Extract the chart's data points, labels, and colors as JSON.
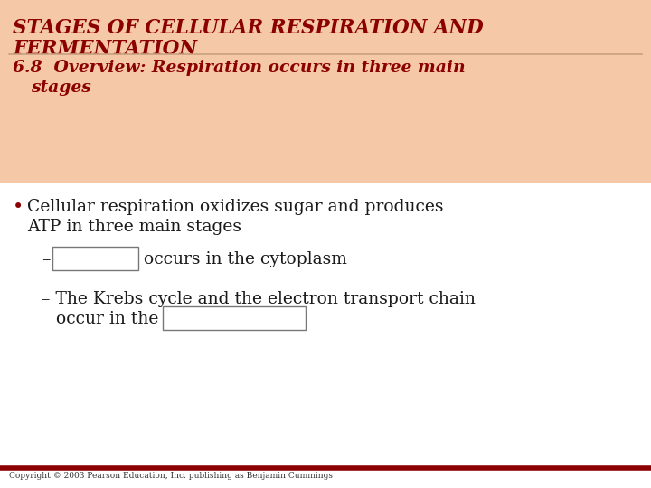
{
  "title_line1": "STAGES OF CELLULAR RESPIRATION AND",
  "title_line2": "FERMENTATION",
  "header_bg": "#F5C9A8",
  "header_title_color": "#8B0000",
  "header_subtitle_color": "#8B0000",
  "body_bg": "#FFFFFF",
  "body_text_color": "#1A1A1A",
  "divider_color": "#C8A080",
  "footer_text": "Copyright © 2003 Pearson Education, Inc. publishing as Benjamin Cummings",
  "footer_color": "#333333",
  "footer_line_color": "#8B0000",
  "box_border": "#777777"
}
